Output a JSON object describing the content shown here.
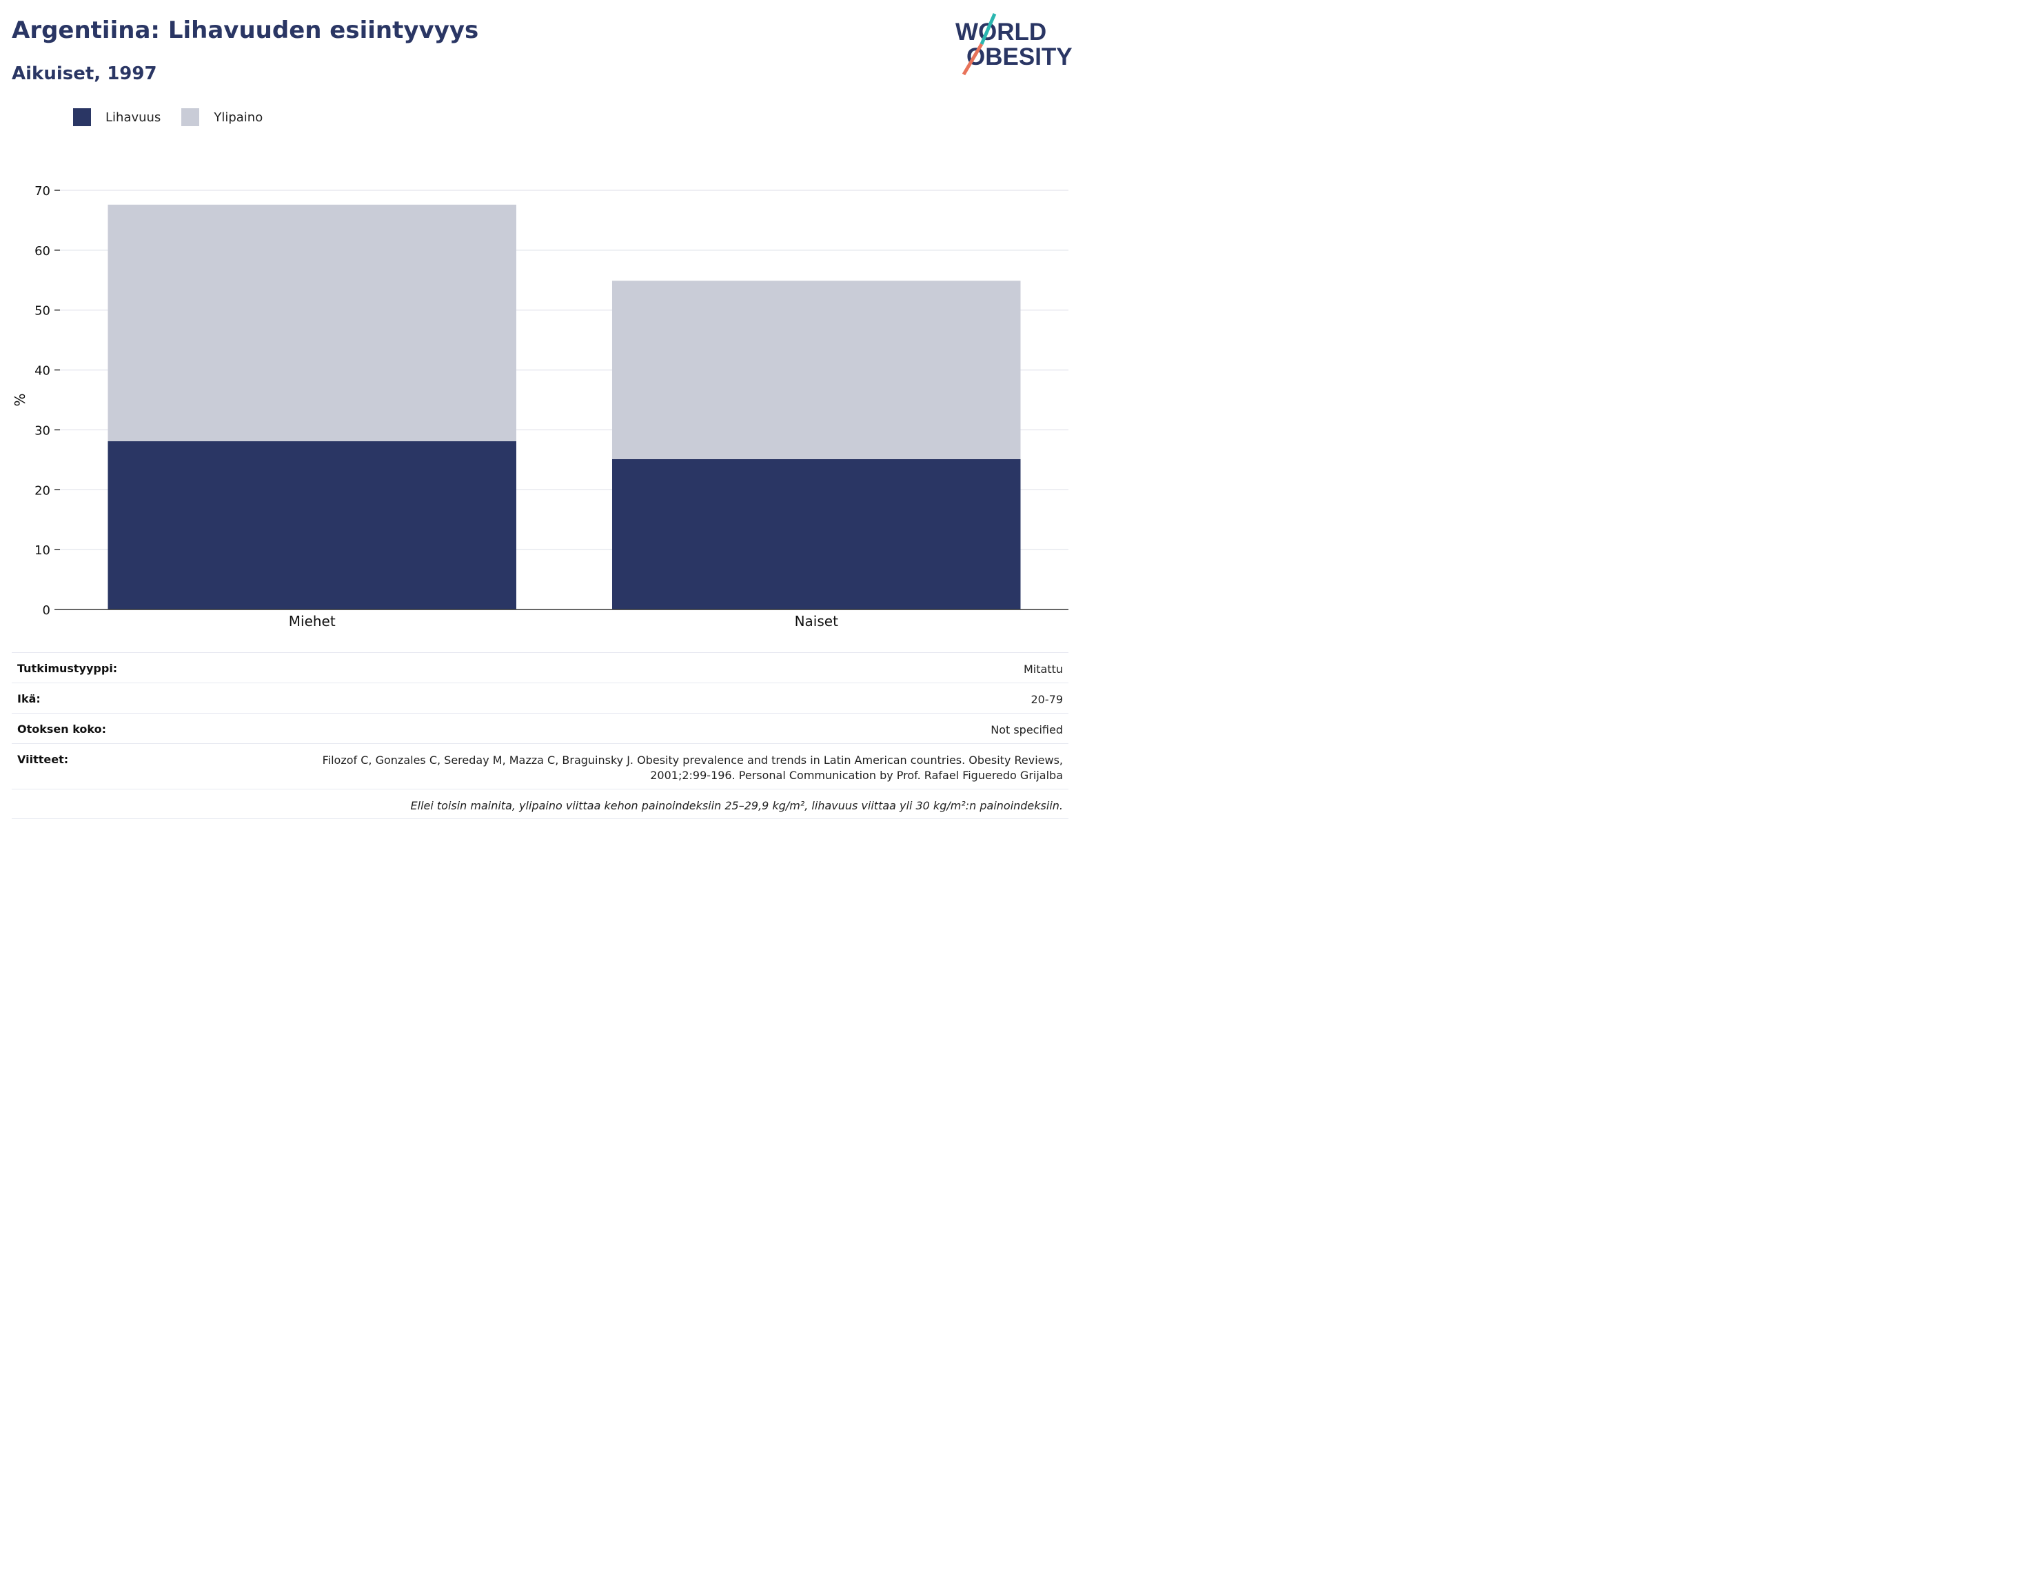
{
  "header": {
    "title": "Argentiina: Lihavuuden esiintyvyys",
    "subtitle": "Aikuiset, 1997"
  },
  "logo": {
    "line1": "WORLD",
    "line2": "OBESITY",
    "accent_teal": "#2bb6b0",
    "accent_coral": "#e8735a",
    "text_color": "#2a3664"
  },
  "colors": {
    "obesity": "#2a3664",
    "overweight": "#c9ccd7",
    "title": "#2a3664"
  },
  "chart_data": {
    "type": "bar",
    "stacked": true,
    "categories": [
      "Miehet",
      "Naiset"
    ],
    "series": [
      {
        "name": "Lihavuus",
        "values": [
          28.1,
          25.1
        ],
        "color": "#2a3664"
      },
      {
        "name": "Ylipaino",
        "values": [
          39.5,
          29.8
        ],
        "color": "#c9ccd7"
      }
    ],
    "ylabel": "%",
    "ylim": [
      0,
      70
    ],
    "yticks": [
      0,
      10,
      20,
      30,
      40,
      50,
      60,
      70
    ],
    "grid": true,
    "legend": "top-left"
  },
  "meta": {
    "study_type_label": "Tutkimustyyppi:",
    "study_type_value": "Mitattu",
    "age_label": "Ikä:",
    "age_value": "20-79",
    "sample_label": "Otoksen koko:",
    "sample_value": "Not specified",
    "refs_label": "Viitteet:",
    "refs_value_line1": "Filozof C, Gonzales C, Sereday M, Mazza C, Braguinsky J. Obesity prevalence and trends in Latin American countries. Obesity Reviews,",
    "refs_value_line2": "2001;2:99-196. Personal Communication by Prof. Rafael Figueredo Grijalba",
    "note": "Ellei toisin mainita, ylipaino viittaa kehon painoindeksiin 25–29,9 kg/m², lihavuus viittaa yli 30 kg/m²:n painoindeksiin."
  }
}
